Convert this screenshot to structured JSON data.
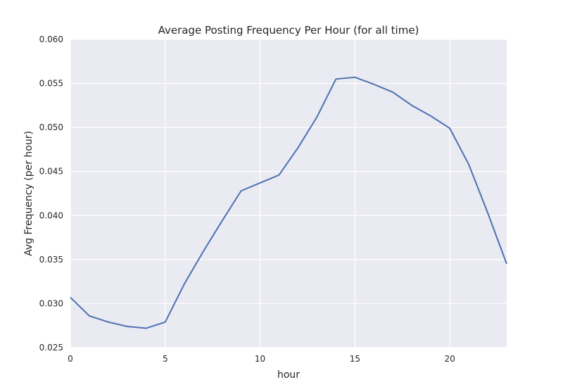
{
  "chart_data": {
    "type": "line",
    "title": "Average Posting Frequency Per Hour (for all time)",
    "xlabel": "hour",
    "ylabel": "Avg Frequency (per hour)",
    "xlim": [
      0,
      23
    ],
    "ylim": [
      0.025,
      0.06
    ],
    "xticks": [
      0,
      5,
      10,
      15,
      20
    ],
    "xtick_labels": [
      "0",
      "5",
      "10",
      "15",
      "20"
    ],
    "yticks": [
      0.025,
      0.03,
      0.035,
      0.04,
      0.045,
      0.05,
      0.055,
      0.06
    ],
    "ytick_labels": [
      "0.025",
      "0.030",
      "0.035",
      "0.040",
      "0.045",
      "0.050",
      "0.055",
      "0.060"
    ],
    "grid": true,
    "background_color": "#eaeaf2",
    "grid_color": "#ffffff",
    "series": [
      {
        "color": "#4c72b0",
        "x": [
          0,
          1,
          2,
          3,
          4,
          5,
          6,
          7,
          8,
          9,
          10,
          11,
          12,
          13,
          14,
          15,
          16,
          17,
          18,
          19,
          20,
          21,
          22,
          23
        ],
        "values": [
          0.0307,
          0.0286,
          0.0279,
          0.0274,
          0.0272,
          0.0279,
          0.0322,
          0.0359,
          0.0394,
          0.0428,
          0.0437,
          0.0446,
          0.0477,
          0.0512,
          0.0555,
          0.0557,
          0.0549,
          0.054,
          0.0525,
          0.0513,
          0.0499,
          0.0458,
          0.0403,
          0.0345
        ]
      }
    ]
  }
}
